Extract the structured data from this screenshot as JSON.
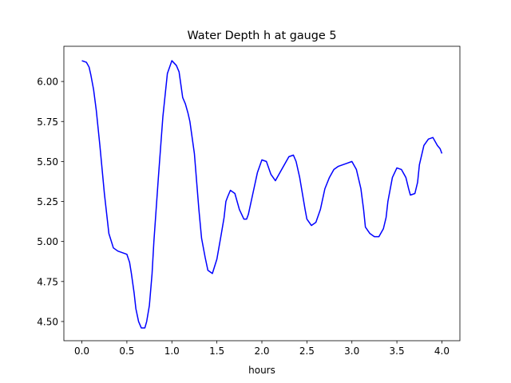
{
  "chart_data": {
    "type": "line",
    "title": "Water Depth h at gauge 5",
    "xlabel": "hours",
    "ylabel": "",
    "xlim": [
      -0.2,
      4.2
    ],
    "ylim": [
      4.38,
      6.22
    ],
    "xticks": [
      0.0,
      0.5,
      1.0,
      1.5,
      2.0,
      2.5,
      3.0,
      3.5,
      4.0
    ],
    "xtick_labels": [
      "0.0",
      "0.5",
      "1.0",
      "1.5",
      "2.0",
      "2.5",
      "3.0",
      "3.5",
      "4.0"
    ],
    "yticks": [
      4.5,
      4.75,
      5.0,
      5.25,
      5.5,
      5.75,
      6.0
    ],
    "ytick_labels": [
      "4.50",
      "4.75",
      "5.00",
      "5.25",
      "5.50",
      "5.75",
      "6.00"
    ],
    "grid": false,
    "legend": "none",
    "series": [
      {
        "color": "#0000ff",
        "x": [
          0.0,
          0.05,
          0.08,
          0.1,
          0.13,
          0.16,
          0.2,
          0.25,
          0.3,
          0.35,
          0.4,
          0.45,
          0.5,
          0.53,
          0.55,
          0.58,
          0.6,
          0.63,
          0.66,
          0.7,
          0.72,
          0.75,
          0.78,
          0.8,
          0.85,
          0.9,
          0.95,
          1.0,
          1.05,
          1.08,
          1.1,
          1.12,
          1.15,
          1.18,
          1.2,
          1.25,
          1.3,
          1.33,
          1.37,
          1.4,
          1.45,
          1.5,
          1.55,
          1.58,
          1.6,
          1.62,
          1.65,
          1.7,
          1.75,
          1.8,
          1.83,
          1.85,
          1.9,
          1.95,
          2.0,
          2.05,
          2.1,
          2.15,
          2.2,
          2.25,
          2.3,
          2.35,
          2.38,
          2.42,
          2.45,
          2.48,
          2.5,
          2.55,
          2.6,
          2.65,
          2.7,
          2.75,
          2.8,
          2.85,
          2.9,
          2.95,
          3.0,
          3.05,
          3.1,
          3.13,
          3.15,
          3.2,
          3.25,
          3.3,
          3.35,
          3.38,
          3.4,
          3.45,
          3.5,
          3.55,
          3.6,
          3.63,
          3.65,
          3.7,
          3.73,
          3.75,
          3.8,
          3.85,
          3.9,
          3.95,
          3.98,
          4.0
        ],
        "y": [
          6.13,
          6.12,
          6.09,
          6.04,
          5.95,
          5.82,
          5.6,
          5.3,
          5.05,
          4.96,
          4.94,
          4.93,
          4.92,
          4.87,
          4.8,
          4.68,
          4.58,
          4.5,
          4.46,
          4.46,
          4.5,
          4.6,
          4.8,
          5.0,
          5.4,
          5.78,
          6.05,
          6.13,
          6.1,
          6.06,
          5.98,
          5.9,
          5.86,
          5.8,
          5.75,
          5.55,
          5.2,
          5.02,
          4.9,
          4.82,
          4.8,
          4.89,
          5.05,
          5.15,
          5.25,
          5.28,
          5.32,
          5.3,
          5.2,
          5.14,
          5.14,
          5.17,
          5.3,
          5.43,
          5.51,
          5.5,
          5.42,
          5.38,
          5.43,
          5.48,
          5.53,
          5.54,
          5.5,
          5.4,
          5.3,
          5.2,
          5.14,
          5.1,
          5.12,
          5.2,
          5.33,
          5.4,
          5.45,
          5.47,
          5.48,
          5.49,
          5.5,
          5.45,
          5.33,
          5.2,
          5.09,
          5.05,
          5.03,
          5.03,
          5.08,
          5.15,
          5.25,
          5.4,
          5.46,
          5.45,
          5.4,
          5.33,
          5.29,
          5.3,
          5.37,
          5.48,
          5.6,
          5.64,
          5.65,
          5.6,
          5.58,
          5.55
        ]
      }
    ]
  }
}
